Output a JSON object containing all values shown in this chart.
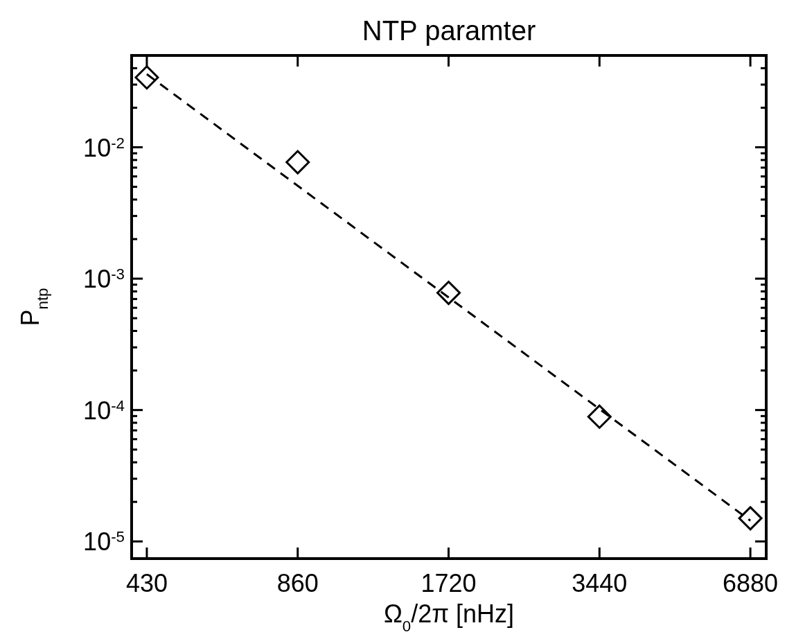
{
  "chart_data": {
    "type": "scatter",
    "title": "NTP paramter",
    "xlabel": "Ω$_{0}$/2π [nHz]",
    "ylabel": "P$_{ntp}$",
    "log": "xy",
    "grid": false,
    "xlim": [
      401,
      7400
    ],
    "ylim": [
      7.4e-06,
      0.05
    ],
    "xticks": [
      430,
      860,
      1720,
      3440,
      6880
    ],
    "yticks": [
      {
        "value": 1e-05,
        "label": "10$^{-5}$"
      },
      {
        "value": 2e-05,
        "label": null
      },
      {
        "value": 3e-05,
        "label": null
      },
      {
        "value": 4e-05,
        "label": null
      },
      {
        "value": 5e-05,
        "label": null
      },
      {
        "value": 6e-05,
        "label": null
      },
      {
        "value": 7e-05,
        "label": null
      },
      {
        "value": 8e-05,
        "label": null
      },
      {
        "value": 9e-05,
        "label": null
      },
      {
        "value": 0.0001,
        "label": "10$^{-4}$"
      },
      {
        "value": 0.0002,
        "label": null
      },
      {
        "value": 0.0003,
        "label": null
      },
      {
        "value": 0.0004,
        "label": null
      },
      {
        "value": 0.0005,
        "label": null
      },
      {
        "value": 0.0006,
        "label": null
      },
      {
        "value": 0.0007,
        "label": null
      },
      {
        "value": 0.0008,
        "label": null
      },
      {
        "value": 0.0009,
        "label": null
      },
      {
        "value": 0.001,
        "label": "10$^{-3}$"
      },
      {
        "value": 0.002,
        "label": null
      },
      {
        "value": 0.003,
        "label": null
      },
      {
        "value": 0.004,
        "label": null
      },
      {
        "value": 0.005,
        "label": null
      },
      {
        "value": 0.006,
        "label": null
      },
      {
        "value": 0.007,
        "label": null
      },
      {
        "value": 0.008,
        "label": null
      },
      {
        "value": 0.009,
        "label": null
      },
      {
        "value": 0.01,
        "label": "10$^{-2}$"
      },
      {
        "value": 0.02,
        "label": null
      },
      {
        "value": 0.03,
        "label": null
      },
      {
        "value": 0.04,
        "label": null
      }
    ],
    "series": [
      {
        "type": "scatter",
        "color": "#000000",
        "marker": "diamond",
        "x": [
          430,
          860,
          1720,
          3440,
          6880
        ],
        "values": [
          0.034,
          0.0077,
          0.00078,
          8.9e-05,
          1.5e-05
        ]
      },
      {
        "type": "line",
        "color": "#000000",
        "line_style": "dashed",
        "marker": "none",
        "x": [
          430,
          6880
        ],
        "values": [
          0.036,
          1.44e-05
        ]
      }
    ]
  }
}
